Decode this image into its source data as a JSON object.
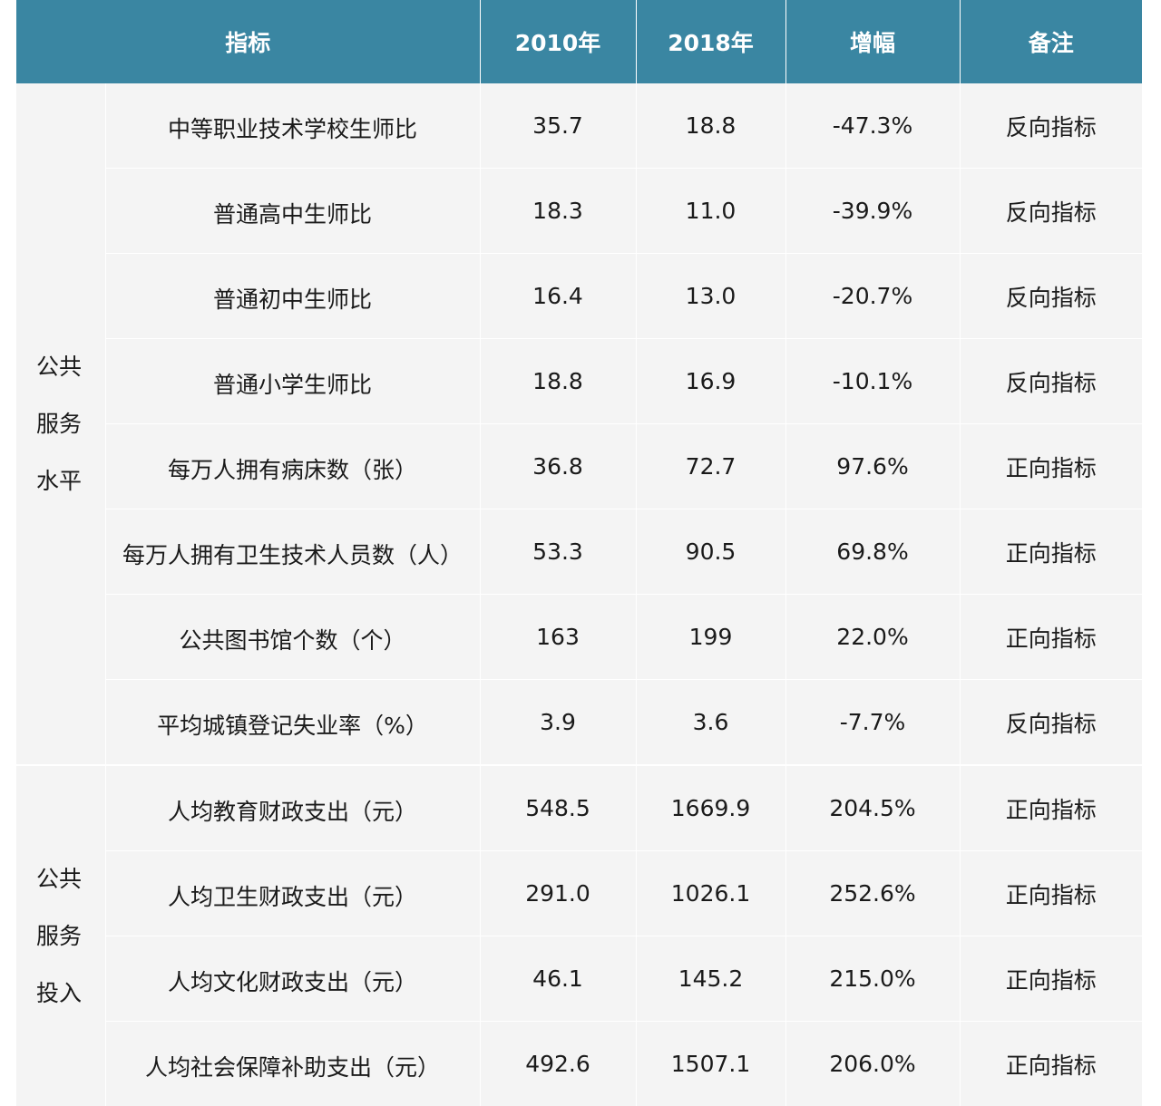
{
  "header": {
    "indicator": "指标",
    "year1": "2010年",
    "year2": "2018年",
    "increase": "增幅",
    "note": "备注"
  },
  "groups": [
    {
      "label_lines": [
        "公共",
        "服务",
        "水平"
      ],
      "rows": [
        {
          "indicator": "中等职业技术学校生师比",
          "y2010": "35.7",
          "y2018": "18.8",
          "increase": "-47.3%",
          "note": "反向指标"
        },
        {
          "indicator": "普通高中生师比",
          "y2010": "18.3",
          "y2018": "11.0",
          "increase": "-39.9%",
          "note": "反向指标"
        },
        {
          "indicator": "普通初中生师比",
          "y2010": "16.4",
          "y2018": "13.0",
          "increase": "-20.7%",
          "note": "反向指标"
        },
        {
          "indicator": "普通小学生师比",
          "y2010": "18.8",
          "y2018": "16.9",
          "increase": "-10.1%",
          "note": "反向指标"
        },
        {
          "indicator": "每万人拥有病床数（张）",
          "y2010": "36.8",
          "y2018": "72.7",
          "increase": "97.6%",
          "note": "正向指标"
        },
        {
          "indicator": "每万人拥有卫生技术人员数（人）",
          "y2010": "53.3",
          "y2018": "90.5",
          "increase": "69.8%",
          "note": "正向指标"
        },
        {
          "indicator": "公共图书馆个数（个）",
          "y2010": "163",
          "y2018": "199",
          "increase": "22.0%",
          "note": "正向指标"
        },
        {
          "indicator": "平均城镇登记失业率（%）",
          "y2010": "3.9",
          "y2018": "3.6",
          "increase": "-7.7%",
          "note": "反向指标"
        }
      ]
    },
    {
      "label_lines": [
        "公共",
        "服务",
        "投入"
      ],
      "rows": [
        {
          "indicator": "人均教育财政支出（元）",
          "y2010": "548.5",
          "y2018": "1669.9",
          "increase": "204.5%",
          "note": "正向指标"
        },
        {
          "indicator": "人均卫生财政支出（元）",
          "y2010": "291.0",
          "y2018": "1026.1",
          "increase": "252.6%",
          "note": "正向指标"
        },
        {
          "indicator": "人均文化财政支出（元）",
          "y2010": "46.1",
          "y2018": "145.2",
          "increase": "215.0%",
          "note": "正向指标"
        },
        {
          "indicator": "人均社会保障补助支出（元）",
          "y2010": "492.6",
          "y2018": "1507.1",
          "increase": "206.0%",
          "note": "正向指标"
        }
      ]
    }
  ]
}
